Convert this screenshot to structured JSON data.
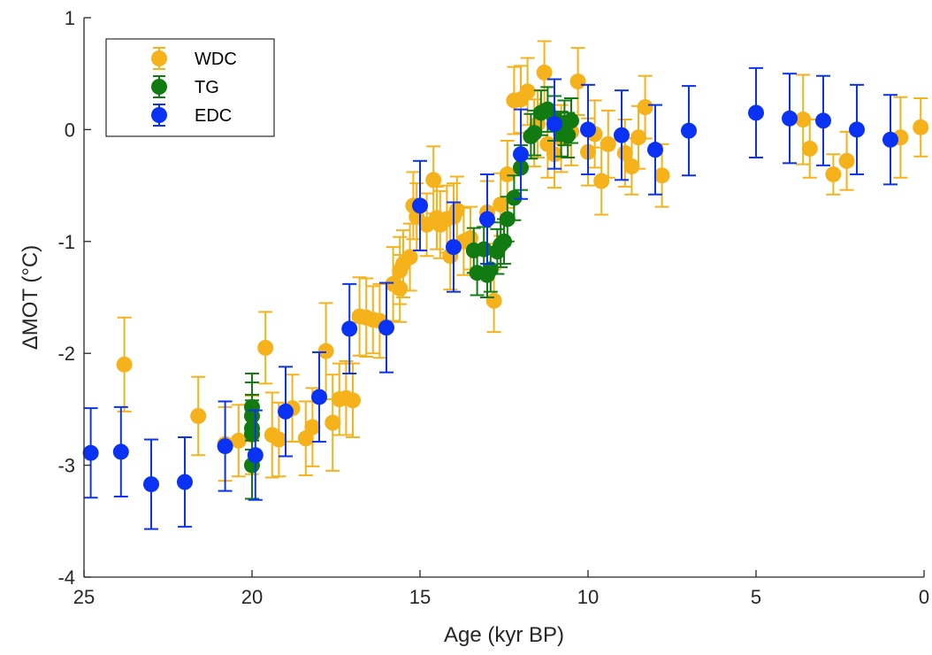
{
  "chart_data": {
    "type": "scatter",
    "xlabel": "Age (kyr BP)",
    "ylabel": "ΔMOT (°C)",
    "xlim": [
      25,
      0
    ],
    "x_reversed": true,
    "ylim": [
      -4,
      1
    ],
    "xticks": [
      "25",
      "20",
      "15",
      "10",
      "5",
      "0"
    ],
    "yticks": [
      "1",
      "0",
      "-1",
      "-2",
      "-3",
      "-4"
    ],
    "grid": false,
    "legend_position": "top-left",
    "error_bars": true,
    "series": [
      {
        "name": "WDC",
        "color": "#F5B21B",
        "points": [
          [
            23.8,
            -2.1,
            0.42
          ],
          [
            21.6,
            -2.56,
            0.35
          ],
          [
            20.8,
            -2.81,
            0.33
          ],
          [
            20.4,
            -2.78,
            0.32
          ],
          [
            20.0,
            -2.73,
            0.35
          ],
          [
            19.6,
            -1.95,
            0.32
          ],
          [
            19.4,
            -2.73,
            0.38
          ],
          [
            19.2,
            -2.77,
            0.33
          ],
          [
            18.8,
            -2.49,
            0.3
          ],
          [
            18.4,
            -2.76,
            0.33
          ],
          [
            18.2,
            -2.66,
            0.35
          ],
          [
            17.8,
            -1.98,
            0.43
          ],
          [
            17.6,
            -2.62,
            0.43
          ],
          [
            17.4,
            -2.41,
            0.32
          ],
          [
            17.2,
            -2.4,
            0.33
          ],
          [
            17.0,
            -2.42,
            0.33
          ],
          [
            16.8,
            -1.67,
            0.35
          ],
          [
            16.6,
            -1.68,
            0.35
          ],
          [
            16.4,
            -1.7,
            0.3
          ],
          [
            16.2,
            -1.71,
            0.33
          ],
          [
            15.8,
            -1.38,
            0.33
          ],
          [
            15.6,
            -1.42,
            0.3
          ],
          [
            15.6,
            -1.26,
            0.3
          ],
          [
            15.5,
            -1.2,
            0.3
          ],
          [
            15.3,
            -1.14,
            0.3
          ],
          [
            15.2,
            -0.68,
            0.3
          ],
          [
            15.1,
            -0.78,
            0.3
          ],
          [
            14.8,
            -0.85,
            0.28
          ],
          [
            14.6,
            -0.45,
            0.3
          ],
          [
            14.5,
            -0.79,
            0.28
          ],
          [
            14.4,
            -0.85,
            0.3
          ],
          [
            14.2,
            -0.8,
            0.3
          ],
          [
            14.1,
            -1.13,
            0.3
          ],
          [
            14.0,
            -0.78,
            0.3
          ],
          [
            13.9,
            -0.72,
            0.3
          ],
          [
            13.7,
            -1.0,
            0.3
          ],
          [
            13.5,
            -0.97,
            0.28
          ],
          [
            13.0,
            -0.74,
            0.28
          ],
          [
            12.8,
            -1.53,
            0.28
          ],
          [
            12.6,
            -0.67,
            0.28
          ],
          [
            12.4,
            -0.4,
            0.3
          ],
          [
            12.2,
            0.26,
            0.3
          ],
          [
            12.0,
            0.27,
            0.3
          ],
          [
            11.8,
            0.34,
            0.3
          ],
          [
            11.6,
            -0.03,
            0.3
          ],
          [
            11.5,
            0.05,
            0.3
          ],
          [
            11.3,
            0.51,
            0.28
          ],
          [
            11.2,
            -0.13,
            0.3
          ],
          [
            11.0,
            -0.22,
            0.3
          ],
          [
            10.8,
            -0.08,
            0.3
          ],
          [
            10.5,
            -0.02,
            0.3
          ],
          [
            10.3,
            0.43,
            0.3
          ],
          [
            10.0,
            -0.2,
            0.3
          ],
          [
            9.8,
            -0.04,
            0.3
          ],
          [
            9.6,
            -0.46,
            0.3
          ],
          [
            9.4,
            -0.13,
            0.3
          ],
          [
            8.9,
            -0.21,
            0.3
          ],
          [
            8.7,
            -0.33,
            0.25
          ],
          [
            8.5,
            -0.07,
            0.28
          ],
          [
            8.3,
            0.2,
            0.28
          ],
          [
            7.8,
            -0.41,
            0.28
          ],
          [
            3.6,
            0.09,
            0.4
          ],
          [
            3.4,
            -0.17,
            0.26
          ],
          [
            2.7,
            -0.4,
            0.18
          ],
          [
            2.3,
            -0.28,
            0.26
          ],
          [
            0.7,
            -0.07,
            0.36
          ],
          [
            0.1,
            0.02,
            0.26
          ]
        ]
      },
      {
        "name": "TG",
        "color": "#117A11",
        "points": [
          [
            20.0,
            -2.48,
            0.3
          ],
          [
            20.0,
            -2.56,
            0.3
          ],
          [
            20.0,
            -2.67,
            0.3
          ],
          [
            20.0,
            -2.72,
            0.3
          ],
          [
            20.0,
            -3.0,
            0.3
          ],
          [
            13.4,
            -1.08,
            0.2
          ],
          [
            13.3,
            -1.28,
            0.2
          ],
          [
            13.1,
            -1.07,
            0.2
          ],
          [
            13.0,
            -1.3,
            0.2
          ],
          [
            12.9,
            -1.25,
            0.2
          ],
          [
            12.7,
            -1.09,
            0.2
          ],
          [
            12.6,
            -1.03,
            0.2
          ],
          [
            12.5,
            -1.0,
            0.2
          ],
          [
            12.4,
            -0.8,
            0.2
          ],
          [
            12.2,
            -0.61,
            0.2
          ],
          [
            12.0,
            -0.34,
            0.2
          ],
          [
            11.7,
            -0.06,
            0.2
          ],
          [
            11.6,
            -0.03,
            0.2
          ],
          [
            11.4,
            0.15,
            0.2
          ],
          [
            11.2,
            0.18,
            0.2
          ],
          [
            11.0,
            0.1,
            0.2
          ],
          [
            10.8,
            -0.04,
            0.2
          ],
          [
            10.7,
            0.06,
            0.2
          ],
          [
            10.6,
            -0.05,
            0.2
          ],
          [
            10.5,
            0.08,
            0.2
          ]
        ]
      },
      {
        "name": "EDC",
        "color": "#0A32F5",
        "points": [
          [
            24.8,
            -2.89,
            0.4
          ],
          [
            23.9,
            -2.88,
            0.4
          ],
          [
            23.0,
            -3.17,
            0.4
          ],
          [
            22.0,
            -3.15,
            0.4
          ],
          [
            20.8,
            -2.83,
            0.4
          ],
          [
            19.9,
            -2.91,
            0.4
          ],
          [
            19.0,
            -2.52,
            0.4
          ],
          [
            18.0,
            -2.39,
            0.4
          ],
          [
            17.1,
            -1.78,
            0.4
          ],
          [
            16.0,
            -1.77,
            0.4
          ],
          [
            15.0,
            -0.68,
            0.4
          ],
          [
            14.0,
            -1.05,
            0.4
          ],
          [
            13.0,
            -0.8,
            0.4
          ],
          [
            12.0,
            -0.22,
            0.4
          ],
          [
            11.0,
            0.05,
            0.4
          ],
          [
            10.0,
            0.0,
            0.4
          ],
          [
            9.0,
            -0.05,
            0.4
          ],
          [
            8.0,
            -0.18,
            0.4
          ],
          [
            7.0,
            -0.01,
            0.4
          ],
          [
            5.0,
            0.15,
            0.4
          ],
          [
            4.0,
            0.1,
            0.4
          ],
          [
            3.0,
            0.08,
            0.4
          ],
          [
            2.0,
            0.0,
            0.4
          ],
          [
            1.0,
            -0.09,
            0.4
          ]
        ]
      }
    ]
  }
}
